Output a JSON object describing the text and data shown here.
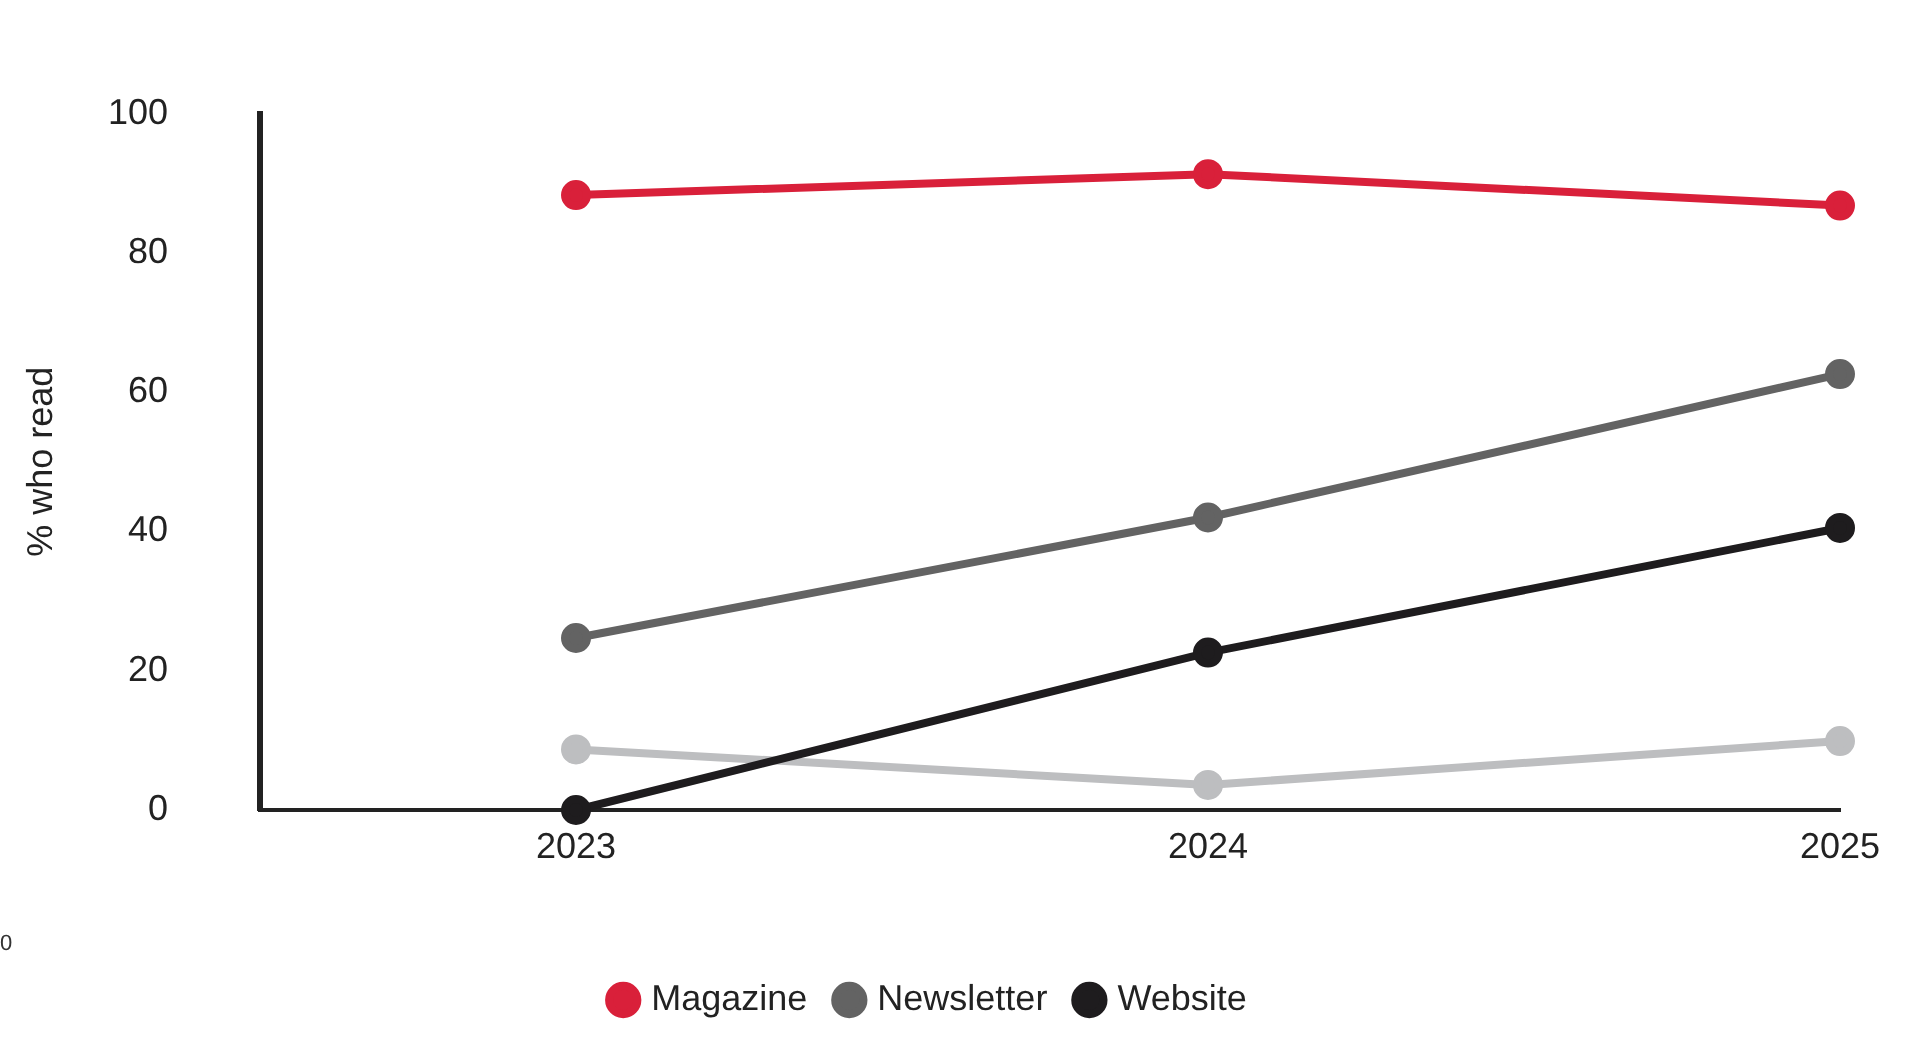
{
  "chart_data": {
    "type": "line",
    "ylabel": "% who read",
    "x": [
      2023,
      2024,
      2025
    ],
    "xlim": [
      2022.5,
      2025
    ],
    "xticks": [
      2023,
      2024,
      2025
    ],
    "ylim": [
      0,
      100
    ],
    "yticks": [
      0,
      20,
      40,
      60,
      80,
      100
    ],
    "grid": false,
    "legend": "bottom",
    "marker": "circle",
    "line_style": "solid",
    "annotations": [
      "0"
    ],
    "series": [
      {
        "name": "Magazine",
        "color": "#d9203a",
        "values": [
          88.3,
          91.3,
          86.8
        ]
      },
      {
        "name": "Newsletter",
        "color": "#636363",
        "values": [
          24.7,
          42,
          62.6
        ]
      },
      {
        "name": "Website",
        "color": "#1e1c1e",
        "values": [
          0,
          22.6,
          40.5
        ]
      },
      {
        "color": "#bdbec0",
        "values": [
          8.7,
          3.6,
          9.9
        ]
      }
    ]
  }
}
